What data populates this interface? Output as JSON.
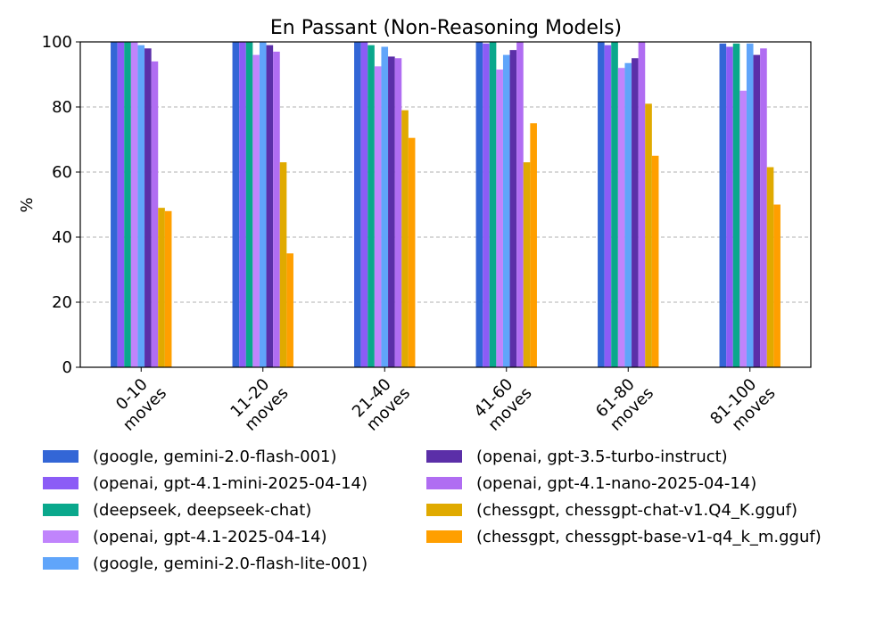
{
  "chart_data": {
    "type": "bar",
    "title": "En Passant (Non-Reasoning Models)",
    "xlabel": "",
    "ylabel": "%",
    "ylim": [
      0,
      100
    ],
    "yticks": [
      0,
      20,
      40,
      60,
      80,
      100
    ],
    "grid": "y-dashed",
    "legend_position": "bottom",
    "categories": [
      "0-10 moves",
      "11-20 moves",
      "21-40 moves",
      "41-60 moves",
      "61-80 moves",
      "81-100 moves"
    ],
    "category_lines": [
      [
        "0-10",
        "moves"
      ],
      [
        "11-20",
        "moves"
      ],
      [
        "21-40",
        "moves"
      ],
      [
        "41-60",
        "moves"
      ],
      [
        "61-80",
        "moves"
      ],
      [
        "81-100",
        "moves"
      ]
    ],
    "series": [
      {
        "name": "(google, gemini-2.0-flash-001)",
        "color": "#3366d6",
        "values": [
          100,
          100,
          100,
          100,
          100,
          99.5
        ]
      },
      {
        "name": "(openai, gpt-4.1-mini-2025-04-14)",
        "color": "#8b5cf6",
        "values": [
          100,
          100,
          100,
          99.5,
          99,
          98.5
        ]
      },
      {
        "name": "(deepseek, deepseek-chat)",
        "color": "#0aa88c",
        "values": [
          100,
          100,
          99,
          100,
          100,
          99.5
        ]
      },
      {
        "name": "(openai, gpt-4.1-2025-04-14)",
        "color": "#c084fc",
        "values": [
          100,
          96,
          92.5,
          91.5,
          92,
          85
        ]
      },
      {
        "name": "(google, gemini-2.0-flash-lite-001)",
        "color": "#60a5fa",
        "values": [
          99,
          100,
          98.5,
          96,
          93.5,
          99.5
        ]
      },
      {
        "name": "(openai, gpt-3.5-turbo-instruct)",
        "color": "#5b2fa8",
        "values": [
          98,
          99,
          95.5,
          97.5,
          95,
          96
        ]
      },
      {
        "name": "(openai, gpt-4.1-nano-2025-04-14)",
        "color": "#b06df2",
        "values": [
          94,
          97,
          95,
          100,
          100,
          98
        ]
      },
      {
        "name": "(chessgpt, chessgpt-chat-v1.Q4_K.gguf)",
        "color": "#e0aa00",
        "values": [
          49,
          63,
          79,
          63,
          81,
          61.5
        ]
      },
      {
        "name": "(chessgpt, chessgpt-base-v1-q4_k_m.gguf)",
        "color": "#ff9f00",
        "values": [
          48,
          35,
          70.5,
          75,
          65,
          50
        ]
      }
    ]
  }
}
